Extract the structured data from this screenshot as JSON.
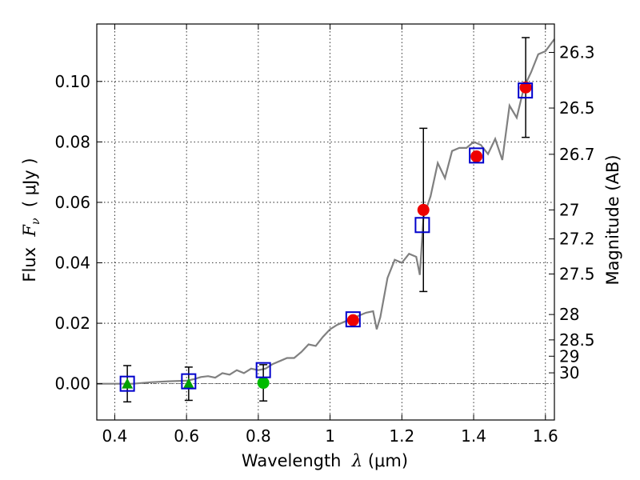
{
  "chart_data": {
    "type": "line",
    "xlabel": {
      "prefix": "Wavelength  ",
      "symbol": "λ",
      "suffix": " (μm)"
    },
    "ylabel": {
      "prefix": "Flux  ",
      "symbol": "F",
      "subscript": "ν",
      "suffix": "  ( μJy )"
    },
    "y2label": "Magnitude (AB)",
    "xlim": [
      0.35,
      1.625
    ],
    "ylim": [
      -0.012,
      0.119
    ],
    "grid": true,
    "x_ticks": [
      {
        "value": 0.4,
        "label": "0.4"
      },
      {
        "value": 0.6,
        "label": "0.6"
      },
      {
        "value": 0.8,
        "label": "0.8"
      },
      {
        "value": 1.0,
        "label": "1"
      },
      {
        "value": 1.2,
        "label": "1.2"
      },
      {
        "value": 1.4,
        "label": "1.4"
      },
      {
        "value": 1.6,
        "label": "1.6"
      }
    ],
    "y_ticks": [
      {
        "value": 0.0,
        "label": "0.00"
      },
      {
        "value": 0.02,
        "label": "0.02"
      },
      {
        "value": 0.04,
        "label": "0.04"
      },
      {
        "value": 0.06,
        "label": "0.06"
      },
      {
        "value": 0.08,
        "label": "0.08"
      },
      {
        "value": 0.1,
        "label": "0.10"
      }
    ],
    "mag_ticks": [
      {
        "label": "26.3",
        "flux": 0.1096
      },
      {
        "label": "26.5",
        "flux": 0.0912
      },
      {
        "label": "26.7",
        "flux": 0.0759
      },
      {
        "label": "27",
        "flux": 0.0575
      },
      {
        "label": "27.2",
        "flux": 0.0479
      },
      {
        "label": "27.5",
        "flux": 0.0363
      },
      {
        "label": "28",
        "flux": 0.0229
      },
      {
        "label": "28.5",
        "flux": 0.0145
      },
      {
        "label": "29",
        "flux": 0.0091
      },
      {
        "label": "30",
        "flux": 0.0036
      }
    ],
    "zero_line": 0.0,
    "model_spectrum": {
      "color": "#808080",
      "x": [
        0.35,
        0.4,
        0.45,
        0.5,
        0.55,
        0.6,
        0.62,
        0.64,
        0.66,
        0.68,
        0.7,
        0.72,
        0.74,
        0.76,
        0.78,
        0.8,
        0.82,
        0.84,
        0.86,
        0.88,
        0.9,
        0.92,
        0.94,
        0.96,
        0.98,
        1.0,
        1.02,
        1.04,
        1.06,
        1.08,
        1.1,
        1.12,
        1.13,
        1.14,
        1.16,
        1.18,
        1.2,
        1.22,
        1.24,
        1.25,
        1.26,
        1.28,
        1.3,
        1.32,
        1.34,
        1.36,
        1.38,
        1.4,
        1.42,
        1.44,
        1.46,
        1.48,
        1.5,
        1.52,
        1.54,
        1.56,
        1.58,
        1.6,
        1.625
      ],
      "y": [
        0.0,
        0.0,
        0.0,
        0.0005,
        0.0008,
        0.001,
        0.0015,
        0.0022,
        0.0025,
        0.002,
        0.0035,
        0.003,
        0.0045,
        0.0035,
        0.005,
        0.0045,
        0.005,
        0.0065,
        0.0075,
        0.0085,
        0.0085,
        0.0105,
        0.013,
        0.0125,
        0.0155,
        0.018,
        0.0195,
        0.0205,
        0.0215,
        0.0225,
        0.0235,
        0.024,
        0.018,
        0.022,
        0.035,
        0.041,
        0.04,
        0.043,
        0.042,
        0.036,
        0.055,
        0.062,
        0.073,
        0.068,
        0.077,
        0.078,
        0.078,
        0.08,
        0.079,
        0.076,
        0.081,
        0.074,
        0.092,
        0.088,
        0.098,
        0.103,
        0.109,
        0.11,
        0.114
      ]
    },
    "synthetic_photometry": {
      "color": "#0000cc",
      "points": [
        {
          "x": 0.435,
          "y": 0.0
        },
        {
          "x": 0.606,
          "y": 0.0008
        },
        {
          "x": 0.814,
          "y": 0.0045
        },
        {
          "x": 1.064,
          "y": 0.0213
        },
        {
          "x": 1.257,
          "y": 0.0525
        },
        {
          "x": 1.408,
          "y": 0.0755
        },
        {
          "x": 1.544,
          "y": 0.097
        }
      ]
    },
    "upper_limits": {
      "color": "#00a000",
      "points": [
        {
          "x": 0.435,
          "y": 0.0,
          "yerr": 0.006
        },
        {
          "x": 0.606,
          "y": 0.0,
          "yerr": 0.0055
        }
      ]
    },
    "optical_detection": {
      "color": "#00bb00",
      "points": [
        {
          "x": 0.814,
          "y": 0.0003,
          "yerr": 0.006
        }
      ]
    },
    "nir_detections": {
      "color": "#ee0000",
      "points": [
        {
          "x": 1.064,
          "y": 0.021,
          "yerr": 0.0
        },
        {
          "x": 1.26,
          "y": 0.0575,
          "yerr": 0.027
        },
        {
          "x": 1.408,
          "y": 0.0752,
          "yerr": 0.0
        },
        {
          "x": 1.545,
          "y": 0.098,
          "yerr": 0.0165
        }
      ]
    }
  }
}
